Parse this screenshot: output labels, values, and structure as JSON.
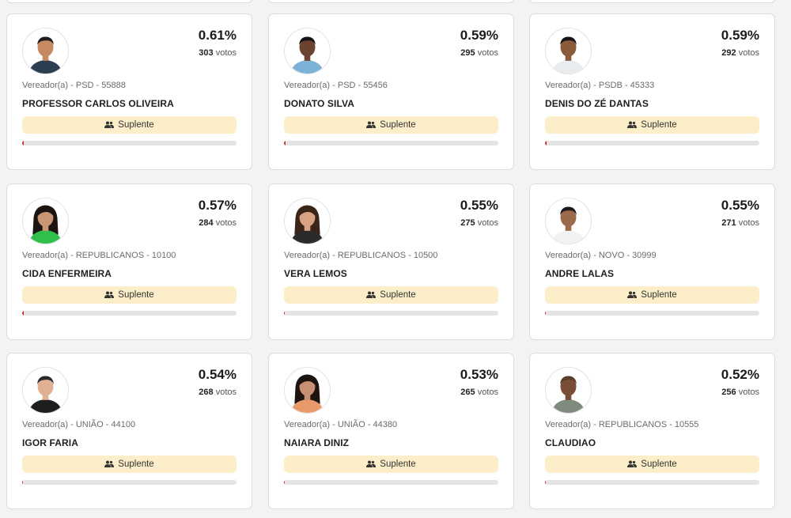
{
  "colors": {
    "status_bg": "#fbeec8",
    "progress_fill": "#c9302c",
    "progress_track": "#e4e4e4"
  },
  "votes_suffix": "votos",
  "candidates": [
    {
      "percent": "0.61%",
      "votes": "303",
      "party_line": "Vereador(a) - PSD - 55888",
      "name": "PROFESSOR CARLOS OLIVEIRA",
      "status": "Suplente",
      "share": 0.0061
    },
    {
      "percent": "0.59%",
      "votes": "295",
      "party_line": "Vereador(a) - PSD - 55456",
      "name": "DONATO SILVA",
      "status": "Suplente",
      "share": 0.0059
    },
    {
      "percent": "0.59%",
      "votes": "292",
      "party_line": "Vereador(a) - PSDB - 45333",
      "name": "DENIS DO ZÉ DANTAS",
      "status": "Suplente",
      "share": 0.0059
    },
    {
      "percent": "0.57%",
      "votes": "284",
      "party_line": "Vereador(a) - REPUBLICANOS - 10100",
      "name": "CIDA ENFERMEIRA",
      "status": "Suplente",
      "share": 0.0057
    },
    {
      "percent": "0.55%",
      "votes": "275",
      "party_line": "Vereador(a) - REPUBLICANOS - 10500",
      "name": "VERA LEMOS",
      "status": "Suplente",
      "share": 0.0055
    },
    {
      "percent": "0.55%",
      "votes": "271",
      "party_line": "Vereador(a) - NOVO - 30999",
      "name": "ANDRE LALAS",
      "status": "Suplente",
      "share": 0.0055
    },
    {
      "percent": "0.54%",
      "votes": "268",
      "party_line": "Vereador(a) - UNIÃO - 44100",
      "name": "IGOR FARIA",
      "status": "Suplente",
      "share": 0.0054
    },
    {
      "percent": "0.53%",
      "votes": "265",
      "party_line": "Vereador(a) - UNIÃO - 44380",
      "name": "NAIARA DINIZ",
      "status": "Suplente",
      "share": 0.0053
    },
    {
      "percent": "0.52%",
      "votes": "256",
      "party_line": "Vereador(a) - REPUBLICANOS - 10555",
      "name": "CLAUDIAO",
      "status": "Suplente",
      "share": 0.0052
    }
  ]
}
